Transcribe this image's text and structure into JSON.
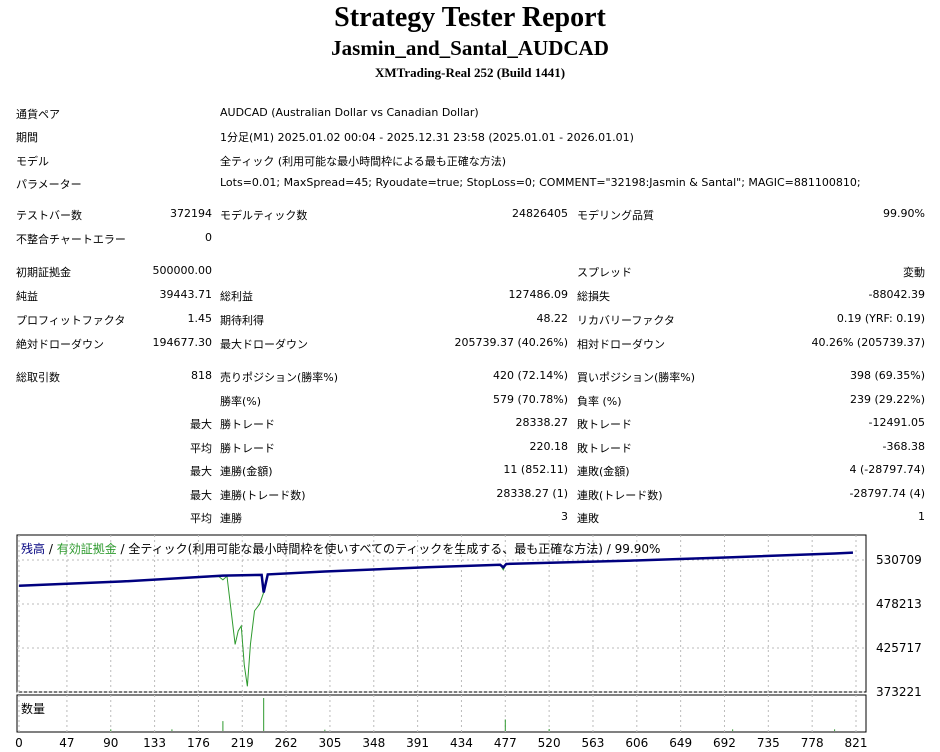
{
  "header": {
    "title": "Strategy Tester Report",
    "name": "Jasmin_and_Santal_AUDCAD",
    "server": "XMTrading-Real 252 (Build 1441)"
  },
  "info": [
    {
      "label": "通貨ペア",
      "value": "AUDCAD (Australian Dollar vs Canadian Dollar)"
    },
    {
      "label": "期間",
      "value": "1分足(M1) 2025.01.02 00:04 - 2025.12.31 23:58 (2025.01.01 - 2026.01.01)"
    },
    {
      "label": "モデル",
      "value": "全ティック (利用可能な最小時間枠による最も正確な方法)"
    },
    {
      "label": "パラメーター",
      "value": "Lots=0.01; MaxSpread=45; Ryoudate=true; StopLoss=0; COMMENT=\"32198:Jasmin & Santal\"; MAGIC=881100810;"
    }
  ],
  "stats": [
    [
      "テストバー数",
      "372194",
      "モデルティック数",
      "24826405",
      "モデリング品質",
      "99.90%"
    ],
    [
      "不整合チャートエラー",
      "0",
      "",
      "",
      "",
      ""
    ],
    [
      "初期証拠金",
      "500000.00",
      "",
      "",
      "スプレッド",
      "変動"
    ],
    [
      "純益",
      "39443.71",
      "総利益",
      "127486.09",
      "総損失",
      "-88042.39"
    ],
    [
      "プロフィットファクタ",
      "1.45",
      "期待利得",
      "48.22",
      "リカバリーファクタ",
      "0.19 (YRF: 0.19)"
    ],
    [
      "絶対ドローダウン",
      "194677.30",
      "最大ドローダウン",
      "205739.37 (40.26%)",
      "相対ドローダウン",
      "40.26% (205739.37)"
    ],
    [
      "総取引数",
      "818",
      "売りポジション(勝率%)",
      "420 (72.14%)",
      "買いポジション(勝率%)",
      "398 (69.35%)"
    ],
    [
      "",
      "",
      "勝率(%)",
      "579 (70.78%)",
      "負率 (%)",
      "239 (29.22%)"
    ],
    [
      "",
      "最大",
      "勝トレード",
      "28338.27",
      "敗トレード",
      "-12491.05"
    ],
    [
      "",
      "平均",
      "勝トレード",
      "220.18",
      "敗トレード",
      "-368.38"
    ],
    [
      "",
      "最大",
      "連勝(金額)",
      "11 (852.11)",
      "連敗(金額)",
      "4 (-28797.74)"
    ],
    [
      "",
      "最大",
      "連勝(トレード数)",
      "28338.27 (1)",
      "連敗(トレード数)",
      "-28797.74 (4)"
    ],
    [
      "",
      "平均",
      "連勝",
      "3",
      "連敗",
      "1"
    ]
  ],
  "chart_data": {
    "type": "line",
    "legend": {
      "balance": "残高",
      "sep1": " / ",
      "equity": "有効証拠金",
      "rest": " / 全ティック(利用可能な最小時間枠を使いすべてのティックを生成する、最も正確な方法) / 99.90%"
    },
    "volume_label": "数量",
    "x_ticks": [
      "0",
      "47",
      "90",
      "133",
      "176",
      "219",
      "262",
      "305",
      "348",
      "391",
      "434",
      "477",
      "520",
      "563",
      "606",
      "649",
      "692",
      "735",
      "778",
      "821"
    ],
    "y_ticks": [
      "530709",
      "478213",
      "425717",
      "373221"
    ],
    "ylim": [
      373221,
      530709
    ],
    "xlim": [
      0,
      821
    ],
    "colors": {
      "balance": "#00007f",
      "equity": "#2e9a2e",
      "volume": "#2e9a2e"
    },
    "series": [
      {
        "name": "残高",
        "values": [
          [
            0,
            500000
          ],
          [
            100,
            505000
          ],
          [
            200,
            512000
          ],
          [
            238,
            513000
          ],
          [
            240,
            492000
          ],
          [
            244,
            513500
          ],
          [
            300,
            517000
          ],
          [
            400,
            522000
          ],
          [
            472,
            525000
          ],
          [
            475,
            522000
          ],
          [
            478,
            526000
          ],
          [
            600,
            530000
          ],
          [
            700,
            534000
          ],
          [
            800,
            538500
          ],
          [
            818,
            539444
          ]
        ]
      },
      {
        "name": "有効証拠金",
        "values": [
          [
            0,
            500000
          ],
          [
            100,
            505000
          ],
          [
            196,
            511000
          ],
          [
            200,
            507000
          ],
          [
            204,
            511500
          ],
          [
            212,
            430000
          ],
          [
            215,
            446000
          ],
          [
            218,
            452000
          ],
          [
            221,
            405000
          ],
          [
            224,
            380000
          ],
          [
            227,
            430000
          ],
          [
            231,
            470000
          ],
          [
            236,
            478000
          ],
          [
            240,
            492000
          ],
          [
            244,
            513500
          ],
          [
            300,
            517000
          ],
          [
            400,
            522000
          ],
          [
            472,
            525000
          ],
          [
            475,
            519000
          ],
          [
            478,
            526000
          ],
          [
            600,
            530000
          ],
          [
            700,
            534000
          ],
          [
            800,
            538500
          ],
          [
            818,
            539444
          ]
        ]
      }
    ],
    "volume": [
      [
        200,
        0.3
      ],
      [
        240,
        1.0
      ],
      [
        477,
        0.35
      ],
      [
        90,
        0.05
      ],
      [
        150,
        0.05
      ],
      [
        300,
        0.04
      ],
      [
        520,
        0.06
      ],
      [
        700,
        0.05
      ],
      [
        800,
        0.05
      ]
    ]
  }
}
